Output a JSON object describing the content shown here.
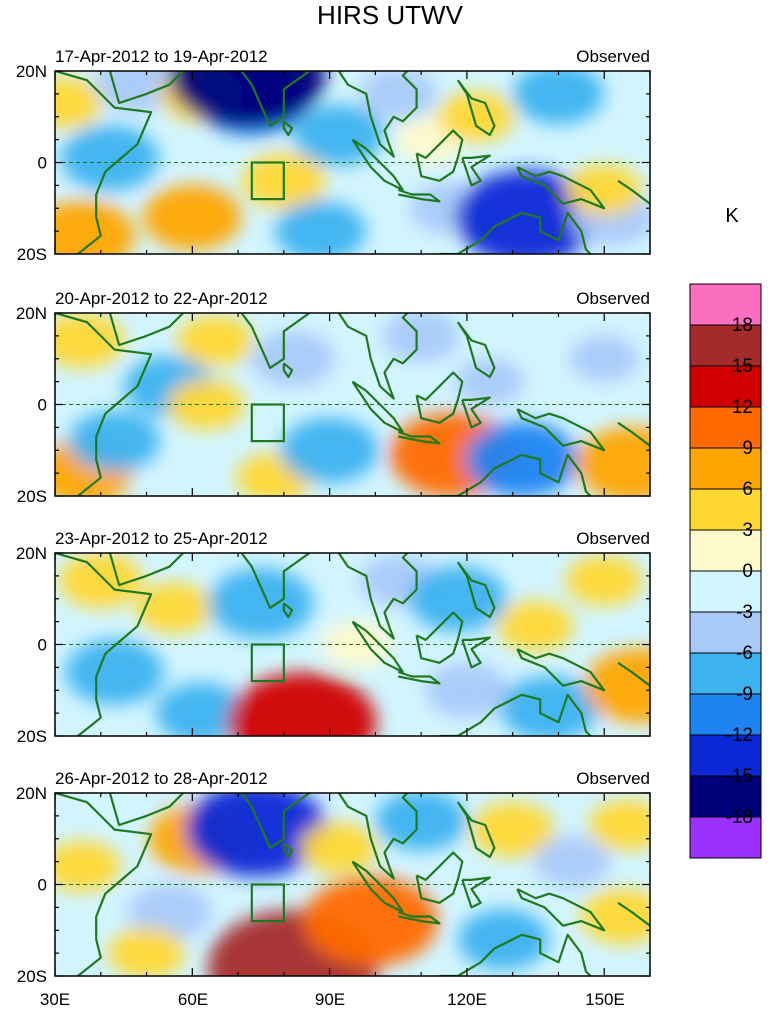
{
  "chart_data": {
    "type": "heatmap",
    "title": "HIRS UTWV",
    "colorbar": {
      "unit": "K",
      "levels": [
        "18",
        "15",
        "12",
        "9",
        "6",
        "3",
        "0",
        "-3",
        "-6",
        "-9",
        "-12",
        "-15",
        "-18"
      ],
      "colors": [
        "#fa6ebf",
        "#a52a2a",
        "#d10000",
        "#ff6a00",
        "#ffa500",
        "#ffd833",
        "#fffacc",
        "#d2f5ff",
        "#a9c9f9",
        "#3cb2f0",
        "#1e84f2",
        "#0a28d6",
        "#00007a",
        "#9b30ff"
      ]
    },
    "x_ticks": [
      "30E",
      "60E",
      "90E",
      "120E",
      "150E"
    ],
    "y_ticks": [
      "20N",
      "0",
      "20S"
    ],
    "xlim": [
      30,
      160
    ],
    "ylim": [
      -20,
      20
    ],
    "panels": [
      {
        "period": "17-Apr-2012 to 19-Apr-2012",
        "label": "Observed",
        "anomalies": [
          {
            "lon": 36,
            "lat": -16,
            "value": 8
          },
          {
            "lon": 32,
            "lat": 13,
            "value": 4
          },
          {
            "lon": 42,
            "lat": 1,
            "value": -7
          },
          {
            "lon": 48,
            "lat": 17,
            "value": -5
          },
          {
            "lon": 62,
            "lat": 15,
            "value": 5
          },
          {
            "lon": 73,
            "lat": 14,
            "value": -9
          },
          {
            "lon": 72,
            "lat": 19,
            "value": -15
          },
          {
            "lon": 60,
            "lat": -12,
            "value": 7
          },
          {
            "lon": 80,
            "lat": -4,
            "value": 5
          },
          {
            "lon": 92,
            "lat": 6,
            "value": -6
          },
          {
            "lon": 88,
            "lat": -15,
            "value": -6
          },
          {
            "lon": 105,
            "lat": 15,
            "value": -4
          },
          {
            "lon": 112,
            "lat": 5,
            "value": 3
          },
          {
            "lon": 122,
            "lat": 10,
            "value": 4
          },
          {
            "lon": 140,
            "lat": 15,
            "value": -6
          },
          {
            "lon": 116,
            "lat": -10,
            "value": -4
          },
          {
            "lon": 133,
            "lat": -12,
            "value": -13
          },
          {
            "lon": 152,
            "lat": -12,
            "value": -5
          },
          {
            "lon": 150,
            "lat": -6,
            "value": 4
          }
        ]
      },
      {
        "period": "20-Apr-2012 to 22-Apr-2012",
        "label": "Observed",
        "anomalies": [
          {
            "lon": 36,
            "lat": 14,
            "value": 5
          },
          {
            "lon": 36,
            "lat": -15,
            "value": 7
          },
          {
            "lon": 43,
            "lat": -8,
            "value": -6
          },
          {
            "lon": 55,
            "lat": 4,
            "value": -6
          },
          {
            "lon": 63,
            "lat": 0,
            "value": 4
          },
          {
            "lon": 65,
            "lat": 14,
            "value": 4
          },
          {
            "lon": 82,
            "lat": 10,
            "value": -5
          },
          {
            "lon": 78,
            "lat": -16,
            "value": 4
          },
          {
            "lon": 90,
            "lat": -10,
            "value": -7
          },
          {
            "lon": 110,
            "lat": 15,
            "value": -4
          },
          {
            "lon": 125,
            "lat": 5,
            "value": -3
          },
          {
            "lon": 117,
            "lat": -11,
            "value": 11
          },
          {
            "lon": 132,
            "lat": -12,
            "value": -9
          },
          {
            "lon": 156,
            "lat": -13,
            "value": 9
          },
          {
            "lon": 150,
            "lat": 10,
            "value": -3
          }
        ]
      },
      {
        "period": "23-Apr-2012 to 25-Apr-2012",
        "label": "Observed",
        "anomalies": [
          {
            "lon": 40,
            "lat": 14,
            "value": 5
          },
          {
            "lon": 43,
            "lat": -6,
            "value": -7
          },
          {
            "lon": 56,
            "lat": 8,
            "value": 4
          },
          {
            "lon": 75,
            "lat": 9,
            "value": -8
          },
          {
            "lon": 62,
            "lat": -15,
            "value": -6
          },
          {
            "lon": 84,
            "lat": -17,
            "value": 14
          },
          {
            "lon": 96,
            "lat": 0,
            "value": 3
          },
          {
            "lon": 105,
            "lat": 14,
            "value": -4
          },
          {
            "lon": 118,
            "lat": 10,
            "value": -7
          },
          {
            "lon": 135,
            "lat": 4,
            "value": 4
          },
          {
            "lon": 120,
            "lat": -10,
            "value": -5
          },
          {
            "lon": 138,
            "lat": -14,
            "value": -7
          },
          {
            "lon": 150,
            "lat": 14,
            "value": 4
          },
          {
            "lon": 158,
            "lat": -9,
            "value": 9
          }
        ]
      },
      {
        "period": "26-Apr-2012 to 28-Apr-2012",
        "label": "Observed",
        "anomalies": [
          {
            "lon": 36,
            "lat": 4,
            "value": 4
          },
          {
            "lon": 62,
            "lat": 10,
            "value": 8
          },
          {
            "lon": 74,
            "lat": 12,
            "value": -13
          },
          {
            "lon": 55,
            "lat": -6,
            "value": -5
          },
          {
            "lon": 50,
            "lat": -15,
            "value": 4
          },
          {
            "lon": 82,
            "lat": -18,
            "value": 17
          },
          {
            "lon": 99,
            "lat": -8,
            "value": 12
          },
          {
            "lon": 92,
            "lat": 8,
            "value": 4
          },
          {
            "lon": 110,
            "lat": 14,
            "value": -6
          },
          {
            "lon": 130,
            "lat": 12,
            "value": 5
          },
          {
            "lon": 128,
            "lat": -12,
            "value": -6
          },
          {
            "lon": 143,
            "lat": 5,
            "value": -4
          },
          {
            "lon": 154,
            "lat": -7,
            "value": 5
          },
          {
            "lon": 155,
            "lat": 13,
            "value": 4
          }
        ]
      }
    ]
  }
}
